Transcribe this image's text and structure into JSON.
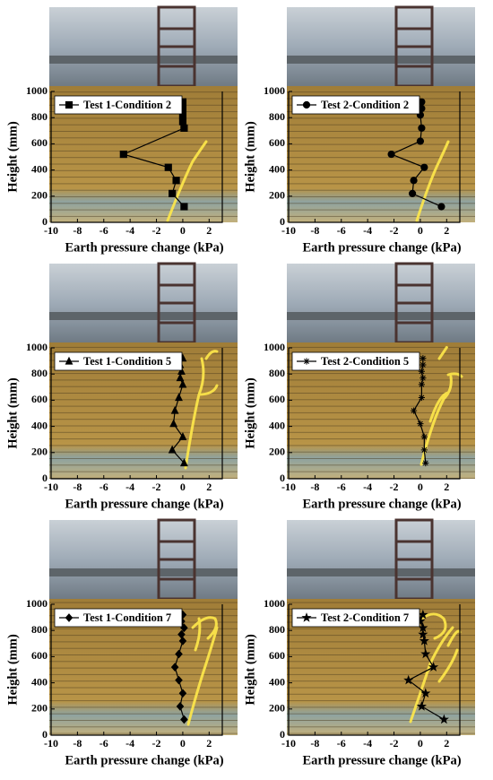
{
  "chart_data": [
    {
      "type": "line",
      "xlabel": "Earth pressure change (kPa)",
      "ylabel": "Height (mm)",
      "xlim": [
        -10,
        3
      ],
      "ylim": [
        0,
        1000
      ],
      "xticks": [
        -10,
        -8,
        -6,
        -4,
        -2,
        0,
        2
      ],
      "yticks": [
        0,
        200,
        400,
        600,
        800,
        1000
      ],
      "series": [
        {
          "name": "Test 1-Condition 2",
          "color": "#000000",
          "marker": "square",
          "x": [
            0,
            0,
            0,
            0,
            0.1,
            -4.5,
            -1.1,
            -0.5,
            -0.8,
            0.1
          ],
          "values": [
            920,
            870,
            820,
            770,
            720,
            520,
            420,
            320,
            220,
            120
          ]
        }
      ]
    },
    {
      "type": "line",
      "xlabel": "Earth pressure change (kPa)",
      "ylabel": "Height (mm)",
      "xlim": [
        -10,
        3
      ],
      "ylim": [
        0,
        1000
      ],
      "xticks": [
        -10,
        -8,
        -6,
        -4,
        -2,
        0,
        2
      ],
      "yticks": [
        0,
        200,
        400,
        600,
        800,
        1000
      ],
      "series": [
        {
          "name": "Test 2-Condition 2",
          "color": "#000000",
          "marker": "circle",
          "x": [
            0.1,
            0.1,
            0,
            0.1,
            0,
            -2.2,
            0.3,
            -0.5,
            -0.6,
            1.6
          ],
          "values": [
            920,
            870,
            820,
            720,
            620,
            520,
            420,
            320,
            220,
            120
          ]
        }
      ]
    },
    {
      "type": "line",
      "xlabel": "Earth pressure change (kPa)",
      "ylabel": "Height (mm)",
      "xlim": [
        -10,
        3
      ],
      "ylim": [
        0,
        1000
      ],
      "xticks": [
        -10,
        -8,
        -6,
        -4,
        -2,
        0,
        2
      ],
      "yticks": [
        0,
        200,
        400,
        600,
        800,
        1000
      ],
      "series": [
        {
          "name": "Test 1-Condition 5",
          "color": "#000000",
          "marker": "triangle",
          "x": [
            0,
            -0.2,
            -0.1,
            -0.2,
            0,
            -0.3,
            -0.6,
            -0.7,
            0,
            -0.8,
            0.1
          ],
          "values": [
            920,
            870,
            820,
            770,
            720,
            620,
            520,
            420,
            320,
            220,
            120
          ]
        }
      ]
    },
    {
      "type": "line",
      "xlabel": "Earth pressure change (kPa)",
      "ylabel": "Height (mm)",
      "xlim": [
        -10,
        3
      ],
      "ylim": [
        0,
        1000
      ],
      "xticks": [
        -10,
        -8,
        -6,
        -4,
        -2,
        0,
        2
      ],
      "yticks": [
        0,
        200,
        400,
        600,
        800,
        1000
      ],
      "series": [
        {
          "name": "Test 2-Condition 5",
          "color": "#000000",
          "marker": "asterisk",
          "x": [
            0.2,
            0.2,
            0.1,
            0.2,
            0.1,
            0.1,
            -0.5,
            0,
            0.3,
            0.3,
            0.4
          ],
          "values": [
            920,
            870,
            820,
            770,
            720,
            620,
            520,
            420,
            320,
            220,
            120
          ]
        }
      ]
    },
    {
      "type": "line",
      "xlabel": "Earth pressure change (kPa)",
      "ylabel": "Height (mm)",
      "xlim": [
        -10,
        3
      ],
      "ylim": [
        0,
        1000
      ],
      "xticks": [
        -10,
        -8,
        -6,
        -4,
        -2,
        0,
        2
      ],
      "yticks": [
        0,
        200,
        400,
        600,
        800,
        1000
      ],
      "series": [
        {
          "name": "Test 1-Condition 7",
          "color": "#000000",
          "marker": "diamond",
          "x": [
            0,
            -0.1,
            0.1,
            -0.1,
            0,
            -0.3,
            -0.6,
            -0.3,
            0,
            -0.2,
            0.1
          ],
          "values": [
            920,
            870,
            820,
            770,
            720,
            620,
            520,
            420,
            320,
            220,
            120
          ]
        }
      ]
    },
    {
      "type": "line",
      "xlabel": "Earth pressure change (kPa)",
      "ylabel": "Height (mm)",
      "xlim": [
        -10,
        3
      ],
      "ylim": [
        0,
        1000
      ],
      "xticks": [
        -10,
        -8,
        -6,
        -4,
        -2,
        0,
        2
      ],
      "yticks": [
        0,
        200,
        400,
        600,
        800,
        1000
      ],
      "series": [
        {
          "name": "Test 2-Condition 7",
          "color": "#000000",
          "marker": "star",
          "x": [
            0.2,
            0,
            0.2,
            0.2,
            0.3,
            0.4,
            1,
            -0.9,
            0.4,
            0.1,
            1.8
          ],
          "values": [
            920,
            870,
            820,
            770,
            720,
            620,
            520,
            420,
            320,
            220,
            120
          ]
        }
      ]
    }
  ]
}
